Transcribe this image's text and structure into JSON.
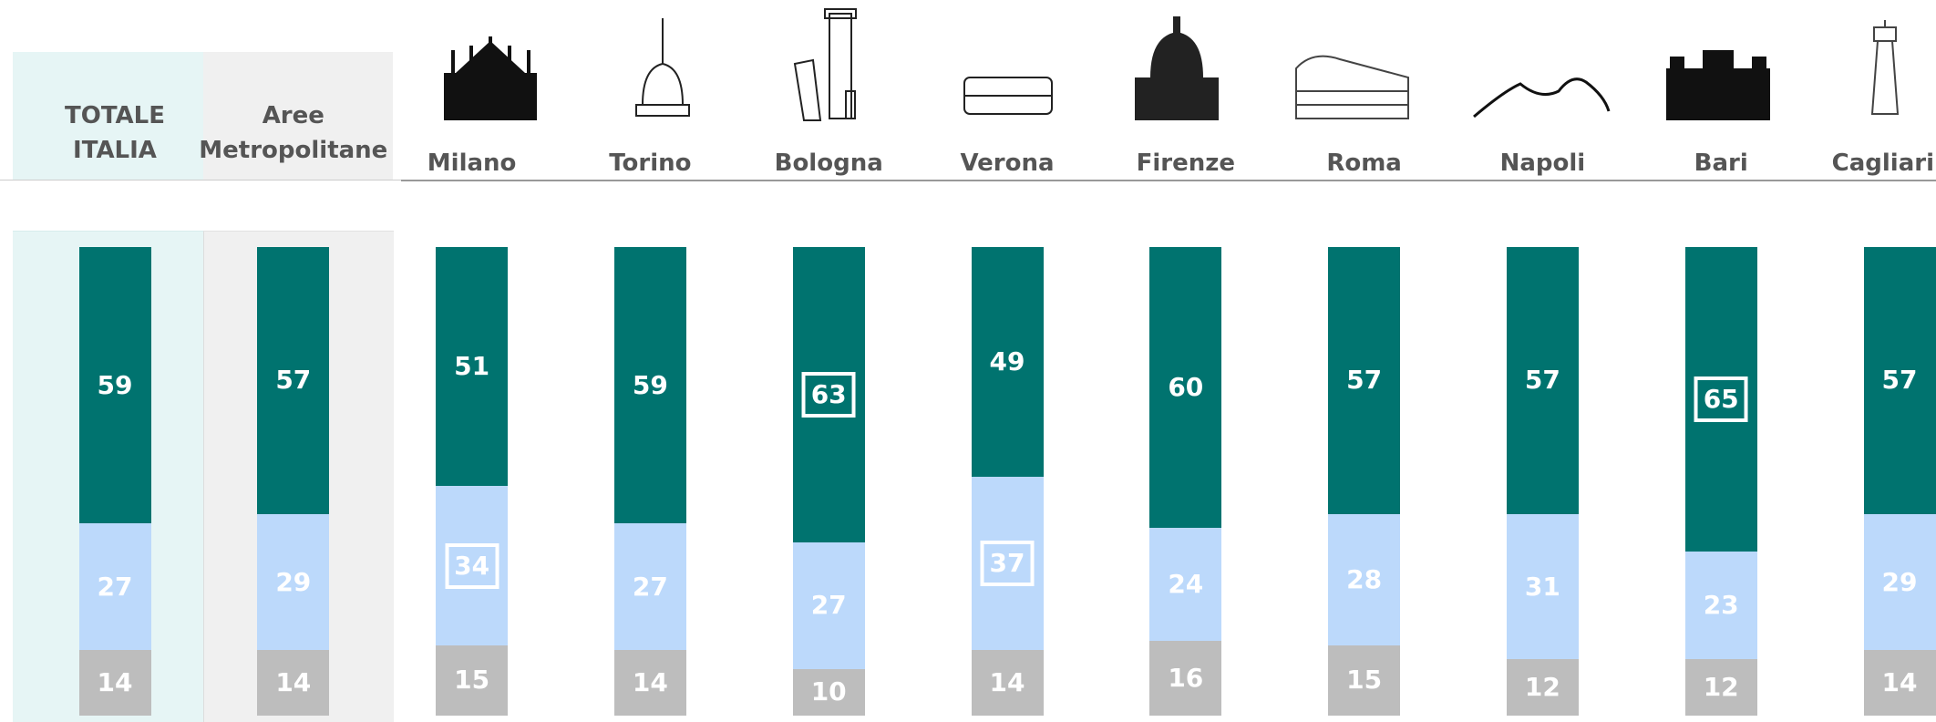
{
  "chart_data": {
    "type": "stacked-bar",
    "categories": [
      "TOTALE ITALIA",
      "Aree Metropolitane",
      "Milano",
      "Torino",
      "Bologna",
      "Verona",
      "Firenze",
      "Roma",
      "Napoli",
      "Bari",
      "Cagliari"
    ],
    "ylim": [
      0,
      100
    ],
    "series": [
      {
        "color": "#bdbdbd",
        "values": [
          14,
          14,
          15,
          14,
          10,
          14,
          16,
          15,
          12,
          12,
          14
        ],
        "boxed": [
          false,
          false,
          false,
          false,
          false,
          false,
          false,
          false,
          false,
          false,
          false
        ]
      },
      {
        "color": "#bcd9fb",
        "values": [
          27,
          29,
          34,
          27,
          27,
          37,
          24,
          28,
          31,
          23,
          29
        ],
        "boxed": [
          false,
          false,
          true,
          false,
          false,
          true,
          false,
          false,
          false,
          false,
          false
        ]
      },
      {
        "color": "#00736f",
        "values": [
          59,
          57,
          51,
          59,
          63,
          49,
          60,
          57,
          57,
          65,
          57
        ],
        "boxed": [
          false,
          false,
          false,
          false,
          true,
          false,
          false,
          false,
          false,
          true,
          false
        ]
      }
    ]
  }
}
